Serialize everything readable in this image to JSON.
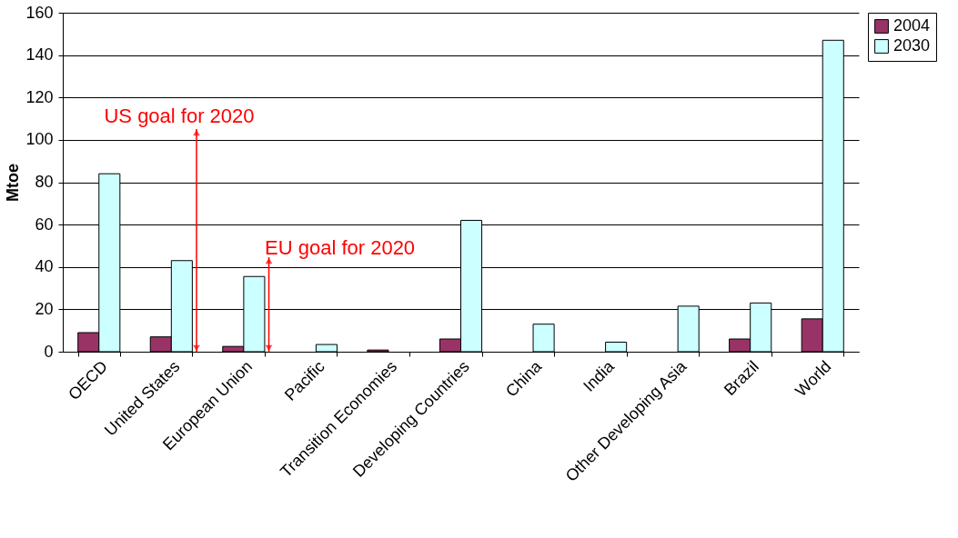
{
  "chart_data": {
    "type": "bar",
    "ylabel": "Mtoe",
    "categories": [
      "OECD",
      "United States",
      "European Union",
      "Pacific",
      "Transition Economies",
      "Developing Countries",
      "China",
      "India",
      "Other Developing Asia",
      "Brazil",
      "World"
    ],
    "series": [
      {
        "name": "2004",
        "color": "#993366",
        "values": [
          9,
          7,
          2.5,
          null,
          0.8,
          6,
          null,
          null,
          null,
          6,
          15.5
        ]
      },
      {
        "name": "2030",
        "color": "#ccffff",
        "values": [
          84,
          43,
          35.5,
          3.4,
          null,
          62,
          13,
          4.5,
          21.5,
          23,
          147
        ]
      }
    ],
    "ylim": [
      0,
      160
    ],
    "yticks": [
      0,
      20,
      40,
      60,
      80,
      100,
      120,
      140,
      160
    ],
    "grid": "y",
    "legend": "right",
    "annotations": [
      "US goal for 2020",
      "EU goal for 2020"
    ]
  }
}
